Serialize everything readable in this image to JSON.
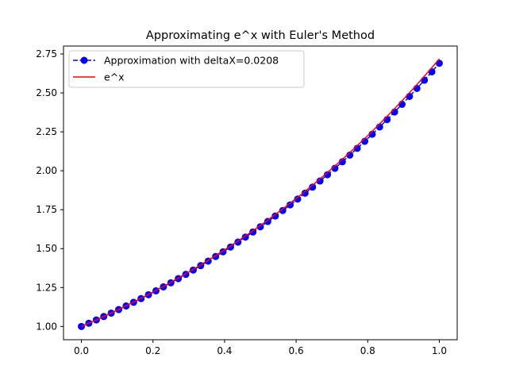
{
  "chart_data": {
    "type": "line",
    "title": "Approximating e^x with Euler's Method",
    "xlabel": "",
    "ylabel": "",
    "xlim": [
      -0.05,
      1.05
    ],
    "ylim": [
      0.915,
      2.801
    ],
    "xticks": [
      0.0,
      0.2,
      0.4,
      0.6,
      0.8,
      1.0
    ],
    "xtick_labels": [
      "0.0",
      "0.2",
      "0.4",
      "0.6",
      "0.8",
      "1.0"
    ],
    "yticks": [
      1.0,
      1.25,
      1.5,
      1.75,
      2.0,
      2.25,
      2.5,
      2.75
    ],
    "ytick_labels": [
      "1.00",
      "1.25",
      "1.50",
      "1.75",
      "2.00",
      "2.25",
      "2.50",
      "2.75"
    ],
    "grid": false,
    "legend_position": "top-left",
    "series": [
      {
        "name": "Approximation with deltaX=0.0208",
        "style": "dashed-with-markers",
        "color": "#0000ff",
        "x": [
          0.0,
          0.0208,
          0.0417,
          0.0625,
          0.0833,
          0.1042,
          0.125,
          0.1458,
          0.1667,
          0.1875,
          0.2083,
          0.2292,
          0.25,
          0.2708,
          0.2917,
          0.3125,
          0.3333,
          0.3542,
          0.375,
          0.3958,
          0.4167,
          0.4375,
          0.4583,
          0.4792,
          0.5,
          0.5208,
          0.5417,
          0.5625,
          0.5833,
          0.6042,
          0.625,
          0.6458,
          0.6667,
          0.6875,
          0.7083,
          0.7292,
          0.75,
          0.7708,
          0.7917,
          0.8125,
          0.8333,
          0.8542,
          0.875,
          0.8958,
          0.9167,
          0.9375,
          0.9583,
          0.9792,
          1.0
        ],
        "y": [
          1.0,
          1.0208,
          1.0421,
          1.0638,
          1.0859,
          1.1086,
          1.1317,
          1.1552,
          1.1793,
          1.2039,
          1.2289,
          1.2545,
          1.2807,
          1.3074,
          1.3346,
          1.3624,
          1.3908,
          1.4197,
          1.4493,
          1.4795,
          1.5103,
          1.5418,
          1.5739,
          1.6067,
          1.6402,
          1.6744,
          1.7093,
          1.7449,
          1.7812,
          1.8183,
          1.8562,
          1.8949,
          1.9344,
          1.9747,
          2.0158,
          2.0578,
          2.1007,
          2.1444,
          2.1891,
          2.2347,
          2.2813,
          2.3288,
          2.3773,
          2.4269,
          2.4774,
          2.529,
          2.5817,
          2.6355,
          2.6904
        ]
      },
      {
        "name": "e^x",
        "style": "solid",
        "color": "#ff0000",
        "x": [
          0.0,
          0.0208,
          0.0417,
          0.0625,
          0.0833,
          0.1042,
          0.125,
          0.1458,
          0.1667,
          0.1875,
          0.2083,
          0.2292,
          0.25,
          0.2708,
          0.2917,
          0.3125,
          0.3333,
          0.3542,
          0.375,
          0.3958,
          0.4167,
          0.4375,
          0.4583,
          0.4792,
          0.5,
          0.5208,
          0.5417,
          0.5625,
          0.5833,
          0.6042,
          0.625,
          0.6458,
          0.6667,
          0.6875,
          0.7083,
          0.7292,
          0.75,
          0.7708,
          0.7917,
          0.8125,
          0.8333,
          0.8542,
          0.875,
          0.8958,
          0.9167,
          0.9375,
          0.9583,
          0.9792,
          1.0
        ],
        "y": [
          1.0,
          1.021,
          1.0425,
          1.0645,
          1.0869,
          1.1098,
          1.1331,
          1.157,
          1.1814,
          1.2062,
          1.2316,
          1.2576,
          1.284,
          1.311,
          1.3386,
          1.3668,
          1.3956,
          1.425,
          1.455,
          1.4856,
          1.5169,
          1.5488,
          1.5814,
          1.6147,
          1.6487,
          1.6834,
          1.7189,
          1.755,
          1.792,
          1.8297,
          1.8682,
          1.9076,
          1.9477,
          1.9887,
          2.0306,
          2.0734,
          2.117,
          2.1616,
          2.2071,
          2.2536,
          2.301,
          2.3495,
          2.3989,
          2.4494,
          2.501,
          2.5536,
          2.6074,
          2.6623,
          2.7183
        ]
      }
    ]
  }
}
